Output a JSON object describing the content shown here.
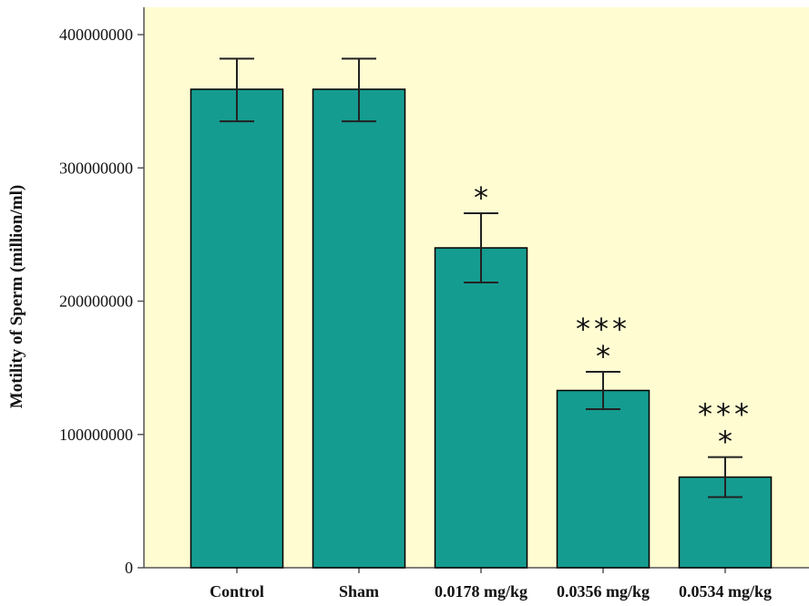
{
  "chart_data": {
    "type": "bar",
    "title": "",
    "xlabel": "",
    "ylabel": "Motility of Sperm (million/ml)",
    "ylim": [
      0,
      400000000
    ],
    "yticks": [
      0,
      100000000,
      200000000,
      300000000,
      400000000
    ],
    "ytick_labels": [
      "0",
      "100000000",
      "200000000",
      "300000000",
      "400000000"
    ],
    "categories": [
      "Control",
      "Sham",
      "0.0178 mg/kg",
      "0.0356 mg/kg",
      "0.0534 mg/kg"
    ],
    "values": [
      359000000,
      359000000,
      240000000,
      133000000,
      68000000
    ],
    "error_high": [
      382000000,
      382000000,
      266000000,
      147000000,
      83000000
    ],
    "error_low": [
      335000000,
      335000000,
      214000000,
      119000000,
      53000000
    ],
    "significance": [
      [],
      [],
      [
        "*"
      ],
      [
        "***",
        "*"
      ],
      [
        "***",
        "*"
      ]
    ],
    "grid": false,
    "legend": "none",
    "colors": {
      "plot_background": "#fffcd2",
      "bar_fill": "#159c90",
      "bar_stroke": "#000000",
      "axis": "#555555"
    }
  }
}
